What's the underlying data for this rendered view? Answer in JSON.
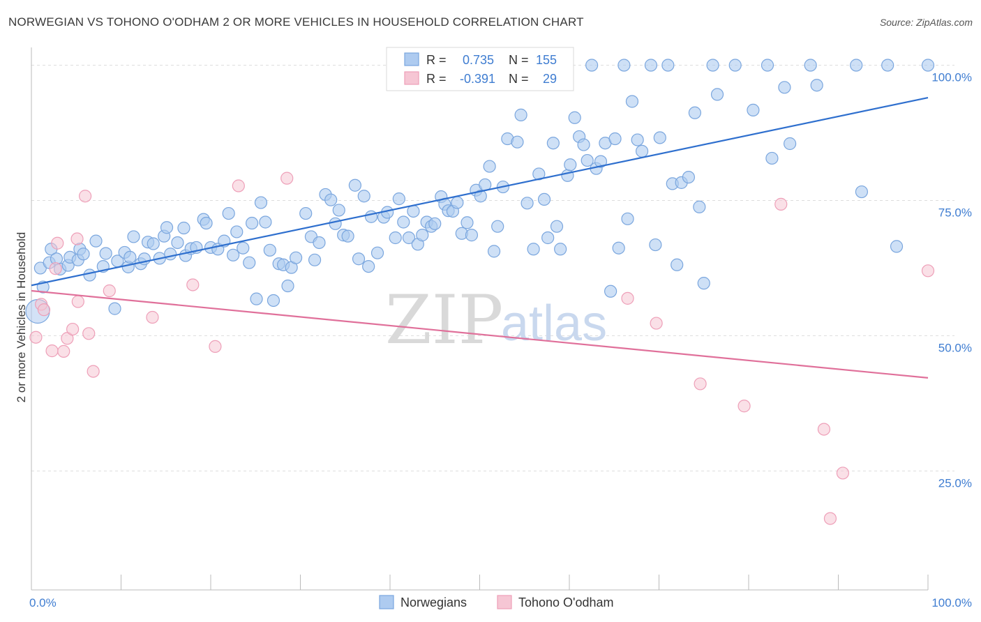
{
  "header": {
    "title": "NORWEGIAN VS TOHONO O'ODHAM 2 OR MORE VEHICLES IN HOUSEHOLD CORRELATION CHART",
    "source": "Source: ZipAtlas.com"
  },
  "watermark": {
    "zip": "ZIP",
    "atlas": "atlas"
  },
  "stats": [
    {
      "r_label": "R =",
      "r_value": "0.735",
      "n_label": "N =",
      "n_value": "155"
    },
    {
      "r_label": "R =",
      "r_value": "-0.391",
      "n_label": "N =",
      "n_value": "29"
    }
  ],
  "colors": {
    "blue_fill": "#aecbf0",
    "blue_stroke": "#7aa6de",
    "blue_line": "#2e6fce",
    "pink_fill": "#f6c6d4",
    "pink_stroke": "#ee9fb8",
    "pink_line": "#e0709a",
    "grid": "#dddddd",
    "axis_text": "#3f7dd1"
  },
  "chart_data": {
    "type": "scatter",
    "title": "NORWEGIAN VS TOHONO O'ODHAM 2 OR MORE VEHICLES IN HOUSEHOLD CORRELATION CHART",
    "xlabel": "",
    "ylabel": "2 or more Vehicles in Household",
    "xlim": [
      0,
      100
    ],
    "ylim": [
      3,
      102
    ],
    "x_tick_labels": [
      "0.0%",
      "100.0%"
    ],
    "y_ticks": [
      100,
      75,
      50,
      25
    ],
    "y_tick_labels": [
      "100.0%",
      "75.0%",
      "50.0%",
      "25.0%"
    ],
    "grid": true,
    "legend_position": "bottom-center",
    "series": [
      {
        "name": "Norwegians",
        "color": "#aecbf0",
        "trend": {
          "x": [
            0,
            100
          ],
          "y": [
            59.3,
            94.0
          ]
        },
        "points": [
          [
            1.3,
            59.0
          ],
          [
            1.0,
            62.5
          ],
          [
            2.0,
            63.5
          ],
          [
            2.2,
            66.0
          ],
          [
            2.8,
            64.2
          ],
          [
            3.2,
            62.3
          ],
          [
            4.1,
            63.0
          ],
          [
            4.3,
            64.5
          ],
          [
            5.2,
            64.0
          ],
          [
            5.4,
            66.0
          ],
          [
            5.8,
            65.1
          ],
          [
            6.5,
            61.2
          ],
          [
            7.2,
            67.5
          ],
          [
            8.0,
            62.8
          ],
          [
            8.3,
            65.2
          ],
          [
            9.3,
            55.0
          ],
          [
            9.6,
            63.8
          ],
          [
            10.4,
            65.4
          ],
          [
            10.8,
            62.7
          ],
          [
            11.4,
            68.3
          ],
          [
            11.0,
            64.5
          ],
          [
            12.2,
            63.3
          ],
          [
            12.6,
            64.2
          ],
          [
            13.0,
            67.3
          ],
          [
            13.6,
            67.0
          ],
          [
            14.3,
            64.3
          ],
          [
            14.8,
            68.4
          ],
          [
            15.1,
            70.0
          ],
          [
            15.5,
            65.1
          ],
          [
            16.3,
            67.2
          ],
          [
            17.0,
            69.9
          ],
          [
            17.2,
            64.8
          ],
          [
            17.8,
            66.1
          ],
          [
            18.4,
            66.3
          ],
          [
            19.2,
            71.5
          ],
          [
            19.5,
            70.8
          ],
          [
            20.0,
            66.3
          ],
          [
            20.8,
            66.0
          ],
          [
            21.5,
            67.5
          ],
          [
            22.0,
            72.6
          ],
          [
            22.5,
            64.9
          ],
          [
            22.9,
            69.2
          ],
          [
            23.6,
            66.2
          ],
          [
            24.3,
            63.5
          ],
          [
            24.6,
            70.8
          ],
          [
            25.1,
            56.8
          ],
          [
            25.6,
            74.6
          ],
          [
            26.1,
            71.0
          ],
          [
            26.6,
            65.8
          ],
          [
            27.0,
            56.5
          ],
          [
            27.6,
            63.3
          ],
          [
            28.1,
            63.1
          ],
          [
            28.6,
            59.2
          ],
          [
            29.0,
            62.6
          ],
          [
            29.5,
            64.4
          ],
          [
            30.6,
            72.6
          ],
          [
            31.2,
            68.3
          ],
          [
            31.6,
            64.0
          ],
          [
            32.1,
            67.2
          ],
          [
            32.8,
            76.1
          ],
          [
            33.4,
            75.1
          ],
          [
            33.9,
            70.7
          ],
          [
            34.3,
            73.2
          ],
          [
            34.8,
            68.6
          ],
          [
            35.3,
            68.4
          ],
          [
            36.1,
            77.8
          ],
          [
            36.5,
            64.2
          ],
          [
            37.1,
            75.8
          ],
          [
            37.6,
            62.8
          ],
          [
            37.9,
            72.0
          ],
          [
            38.6,
            65.3
          ],
          [
            39.3,
            71.9
          ],
          [
            39.7,
            72.8
          ],
          [
            40.6,
            68.1
          ],
          [
            41.0,
            75.3
          ],
          [
            41.5,
            71.0
          ],
          [
            42.1,
            68.1
          ],
          [
            42.6,
            73.0
          ],
          [
            43.1,
            66.9
          ],
          [
            43.6,
            68.6
          ],
          [
            44.1,
            71.0
          ],
          [
            44.6,
            70.2
          ],
          [
            45.0,
            70.7
          ],
          [
            45.7,
            75.7
          ],
          [
            46.1,
            74.3
          ],
          [
            46.5,
            73.1
          ],
          [
            47.0,
            73.0
          ],
          [
            47.5,
            74.6
          ],
          [
            48.0,
            68.9
          ],
          [
            48.6,
            70.9
          ],
          [
            49.1,
            68.6
          ],
          [
            49.6,
            76.9
          ],
          [
            50.1,
            75.8
          ],
          [
            50.6,
            77.9
          ],
          [
            51.1,
            81.3
          ],
          [
            51.6,
            65.6
          ],
          [
            52.0,
            70.2
          ],
          [
            52.6,
            77.5
          ],
          [
            53.1,
            86.4
          ],
          [
            54.2,
            85.8
          ],
          [
            54.6,
            90.8
          ],
          [
            55.3,
            74.5
          ],
          [
            56.0,
            66.0
          ],
          [
            56.6,
            79.9
          ],
          [
            57.2,
            75.2
          ],
          [
            57.6,
            68.1
          ],
          [
            58.2,
            85.6
          ],
          [
            58.6,
            70.2
          ],
          [
            59.0,
            66.0
          ],
          [
            59.8,
            79.6
          ],
          [
            60.1,
            81.6
          ],
          [
            60.6,
            90.3
          ],
          [
            61.1,
            86.8
          ],
          [
            61.6,
            85.3
          ],
          [
            62.0,
            82.4
          ],
          [
            62.5,
            100.0
          ],
          [
            63.0,
            80.9
          ],
          [
            63.5,
            82.2
          ],
          [
            64.0,
            85.6
          ],
          [
            64.6,
            58.2
          ],
          [
            65.1,
            86.4
          ],
          [
            65.5,
            66.2
          ],
          [
            66.1,
            100.0
          ],
          [
            66.5,
            71.6
          ],
          [
            67.0,
            93.3
          ],
          [
            67.6,
            86.2
          ],
          [
            68.1,
            84.1
          ],
          [
            69.1,
            100.0
          ],
          [
            69.6,
            66.8
          ],
          [
            70.1,
            86.6
          ],
          [
            71.0,
            100.0
          ],
          [
            71.5,
            78.1
          ],
          [
            72.0,
            63.1
          ],
          [
            72.5,
            78.3
          ],
          [
            73.3,
            79.3
          ],
          [
            74.0,
            91.2
          ],
          [
            74.5,
            73.8
          ],
          [
            75.0,
            59.7
          ],
          [
            76.0,
            100.0
          ],
          [
            76.5,
            94.6
          ],
          [
            78.5,
            100.0
          ],
          [
            80.5,
            91.7
          ],
          [
            82.1,
            100.0
          ],
          [
            82.6,
            82.8
          ],
          [
            84.0,
            95.9
          ],
          [
            84.6,
            85.5
          ],
          [
            86.9,
            100.0
          ],
          [
            87.6,
            96.3
          ],
          [
            92.0,
            100.0
          ],
          [
            92.6,
            76.6
          ],
          [
            95.5,
            100.0
          ],
          [
            96.5,
            66.5
          ],
          [
            100.0,
            100.0
          ],
          [
            0.7,
            54.5
          ]
        ]
      },
      {
        "name": "Tohono O'odham",
        "color": "#f6c6d4",
        "trend": {
          "x": [
            0,
            100
          ],
          "y": [
            58.3,
            42.2
          ]
        },
        "points": [
          [
            0.5,
            49.7
          ],
          [
            1.1,
            55.8
          ],
          [
            1.4,
            54.8
          ],
          [
            2.3,
            47.2
          ],
          [
            2.7,
            62.4
          ],
          [
            2.9,
            67.1
          ],
          [
            3.6,
            47.1
          ],
          [
            4.0,
            49.5
          ],
          [
            4.6,
            51.2
          ],
          [
            5.1,
            67.9
          ],
          [
            5.2,
            56.3
          ],
          [
            6.0,
            75.8
          ],
          [
            6.4,
            50.4
          ],
          [
            6.9,
            43.4
          ],
          [
            8.7,
            58.3
          ],
          [
            13.5,
            53.4
          ],
          [
            18.0,
            59.4
          ],
          [
            20.5,
            48.0
          ],
          [
            23.1,
            77.7
          ],
          [
            28.5,
            79.1
          ],
          [
            66.5,
            56.9
          ],
          [
            69.7,
            52.3
          ],
          [
            74.6,
            41.1
          ],
          [
            79.5,
            37.0
          ],
          [
            83.6,
            74.3
          ],
          [
            88.4,
            32.7
          ],
          [
            89.1,
            16.2
          ],
          [
            90.5,
            24.6
          ],
          [
            100.0,
            62.0
          ]
        ]
      }
    ]
  },
  "legend": [
    {
      "label": "Norwegians"
    },
    {
      "label": "Tohono O'odham"
    }
  ]
}
